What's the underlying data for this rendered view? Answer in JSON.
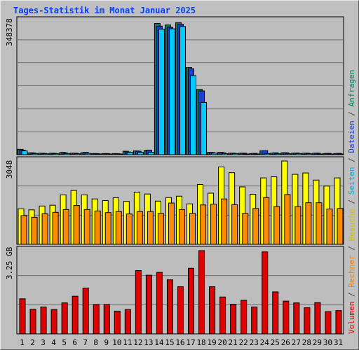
{
  "title": "Tages-Statistik im Monat Januar 2025",
  "colors": {
    "background": "#c0c0c0",
    "panel": "#bdbdbd",
    "anfragen": "#0a7a60",
    "dateien": "#1a3fd8",
    "seiten": "#00ccff",
    "besuche": "#ffff00",
    "rechner": "#ff8c00",
    "volumen": "#e00000",
    "title": "#0040ff",
    "weekend_label": "#008060"
  },
  "side_labels": {
    "part1": [
      {
        "text": "Anfragen",
        "color": "#008060"
      },
      {
        "text": " / ",
        "color": "#404040"
      },
      {
        "text": "Dateien",
        "color": "#1a3fd8"
      },
      {
        "text": " / ",
        "color": "#404040"
      },
      {
        "text": "Seiten",
        "color": "#00b0e0"
      },
      {
        "text": " / ",
        "color": "#404040"
      },
      {
        "text": "Besuche",
        "color": "#d0c000"
      },
      {
        "text": " / ",
        "color": "#404040"
      },
      {
        "text": "Rechner",
        "color": "#ff8000"
      },
      {
        "text": " / ",
        "color": "#404040"
      },
      {
        "text": "Volumen",
        "color": "#e00000"
      }
    ]
  },
  "chart_data": [
    {
      "type": "bar",
      "panel": "top",
      "ylabel": "348378",
      "ymax": 348378,
      "categories": [
        "1",
        "2",
        "3",
        "4",
        "5",
        "6",
        "7",
        "8",
        "9",
        "10",
        "11",
        "12",
        "13",
        "14",
        "15",
        "16",
        "17",
        "18",
        "19",
        "20",
        "21",
        "22",
        "23",
        "24",
        "25",
        "26",
        "27",
        "28",
        "29",
        "30",
        "31"
      ],
      "series": [
        {
          "name": "Anfragen",
          "values": [
            14000,
            5000,
            4000,
            4000,
            6000,
            4000,
            5000,
            3000,
            3000,
            3000,
            9000,
            10000,
            11000,
            342000,
            338000,
            344000,
            227000,
            170000,
            6000,
            6000,
            4000,
            4000,
            3000,
            10000,
            4000,
            5000,
            4000,
            4000,
            4000,
            3000,
            3000
          ]
        },
        {
          "name": "Dateien",
          "values": [
            12000,
            4500,
            3500,
            3500,
            5000,
            4000,
            6000,
            3000,
            3000,
            2500,
            7000,
            9000,
            12000,
            335000,
            332000,
            340000,
            224000,
            166000,
            5500,
            5000,
            4000,
            4000,
            3500,
            10500,
            5000,
            5000,
            4500,
            4000,
            4000,
            3500,
            3500
          ]
        },
        {
          "name": "Seiten",
          "values": [
            10000,
            3000,
            2500,
            2500,
            3000,
            2500,
            3500,
            2000,
            2000,
            2000,
            6000,
            6000,
            6000,
            327000,
            328000,
            334000,
            206000,
            136000,
            4000,
            3000,
            3000,
            2000,
            2000,
            3000,
            2500,
            2500,
            3000,
            2500,
            2000,
            2000,
            2000
          ]
        }
      ]
    },
    {
      "type": "bar",
      "panel": "middle",
      "ylabel": "3048",
      "ymax": 3048,
      "categories": [
        "1",
        "2",
        "3",
        "4",
        "5",
        "6",
        "7",
        "8",
        "9",
        "10",
        "11",
        "12",
        "13",
        "14",
        "15",
        "16",
        "17",
        "18",
        "19",
        "20",
        "21",
        "22",
        "23",
        "24",
        "25",
        "26",
        "27",
        "28",
        "29",
        "30",
        "31"
      ],
      "series": [
        {
          "name": "Besuche",
          "values": [
            1300,
            1260,
            1400,
            1430,
            1810,
            1970,
            1810,
            1660,
            1600,
            1700,
            1570,
            1910,
            1840,
            1580,
            1710,
            1760,
            1480,
            2190,
            1870,
            2830,
            2620,
            2100,
            1830,
            2430,
            2470,
            3048,
            2560,
            2610,
            2350,
            2130,
            2430
          ]
        },
        {
          "name": "Rechner",
          "values": [
            1050,
            990,
            1120,
            1170,
            1270,
            1420,
            1270,
            1220,
            1160,
            1200,
            1110,
            1200,
            1200,
            1130,
            1510,
            1270,
            1130,
            1440,
            1470,
            1660,
            1450,
            1130,
            1310,
            1710,
            1380,
            1820,
            1380,
            1520,
            1520,
            1290,
            1310
          ]
        }
      ]
    },
    {
      "type": "bar",
      "panel": "bottom",
      "ylabel": "3.25 GB",
      "ymax": 3.25,
      "unit": "GB",
      "categories": [
        "1",
        "2",
        "3",
        "4",
        "5",
        "6",
        "7",
        "8",
        "9",
        "10",
        "11",
        "12",
        "13",
        "14",
        "15",
        "16",
        "17",
        "18",
        "19",
        "20",
        "21",
        "22",
        "23",
        "24",
        "25",
        "26",
        "27",
        "28",
        "29",
        "30",
        "31"
      ],
      "series": [
        {
          "name": "Volumen",
          "values": [
            1.37,
            0.96,
            1.05,
            0.95,
            1.21,
            1.47,
            1.79,
            1.15,
            1.15,
            0.89,
            0.95,
            2.47,
            2.29,
            2.4,
            2.11,
            1.84,
            2.56,
            3.25,
            1.84,
            1.44,
            1.16,
            1.31,
            1.05,
            3.2,
            1.64,
            1.28,
            1.21,
            1.02,
            1.22,
            0.87,
            0.91
          ]
        }
      ]
    }
  ],
  "weekend_days": [
    4,
    5,
    11,
    12,
    18,
    19,
    25,
    26
  ]
}
